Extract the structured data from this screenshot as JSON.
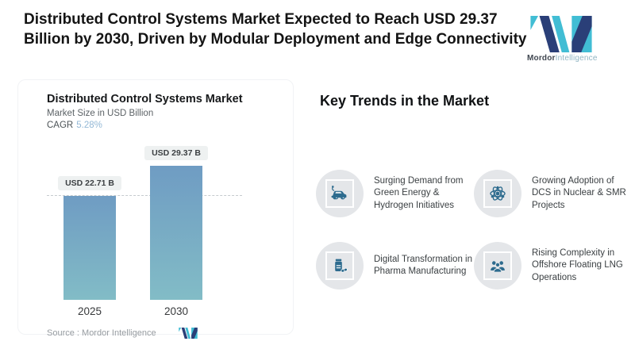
{
  "colors": {
    "navy": "#2a3f78",
    "teal": "#41bdd4",
    "icon_blue": "#2d6b8e",
    "circle_bg": "#e4e6e9",
    "cagr_blue": "#93b8d6"
  },
  "header": {
    "title": "Distributed Control Systems Market Expected to Reach USD 29.37 Billion by 2030, Driven by Modular Deployment and Edge Connectivity",
    "logo": {
      "brand_bold": "Mordor",
      "brand_light": "Intelligence"
    }
  },
  "chart_panel": {
    "title": "Distributed Control Systems Market",
    "subtitle": "Market Size in USD Billion",
    "cagr_label": "CAGR",
    "cagr_value": "5.28%",
    "source_label": "Source :",
    "source_value": "Mordor Intelligence"
  },
  "chart_data": {
    "type": "bar",
    "title": "Distributed Control Systems Market",
    "subtitle": "Market Size in USD Billion",
    "cagr": "5.28%",
    "unit": "USD Billion",
    "categories": [
      "2025",
      "2030"
    ],
    "values": [
      22.71,
      29.37
    ],
    "value_labels": [
      "USD 22.71 B",
      "USD 29.37 B"
    ],
    "ylim": [
      0,
      29.37
    ],
    "reference_line": 22.71,
    "grid": false,
    "legend": "none",
    "bar_gradient_top": "#6f9cc3",
    "bar_gradient_bottom": "#82bcc6"
  },
  "trends": {
    "heading": "Key Trends in the Market",
    "items": [
      {
        "icon": "electric-car-icon",
        "text": "Surging Demand from Green Energy & Hydrogen Initiatives"
      },
      {
        "icon": "atom-icon",
        "text": "Growing Adoption of DCS in Nuclear & SMR Projects"
      },
      {
        "icon": "pill-bottle-icon",
        "text": "Digital Transformation in Pharma Manufacturing"
      },
      {
        "icon": "team-icon",
        "text": "Rising Complexity in Offshore Floating LNG Operations"
      }
    ]
  }
}
